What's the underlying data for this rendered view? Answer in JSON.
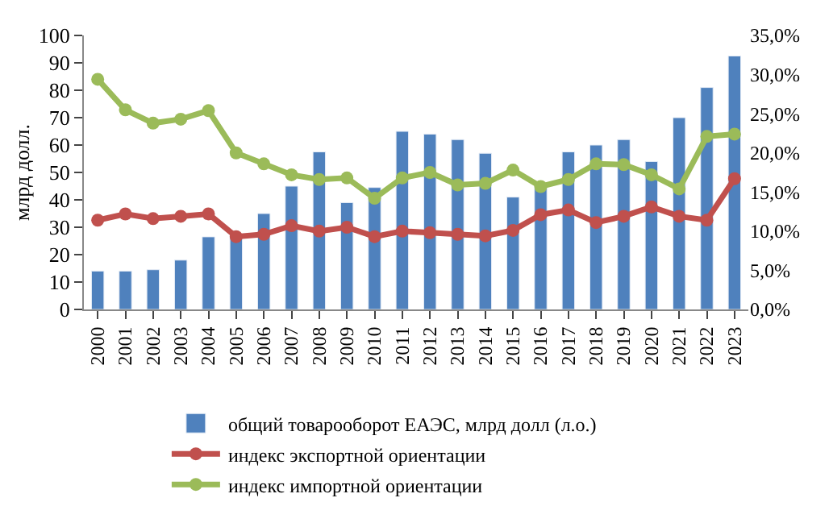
{
  "chart_data": {
    "type": "bar",
    "ylabel": "млрд долл.",
    "categories": [
      "2000",
      "2001",
      "2002",
      "2003",
      "2004",
      "2005",
      "2006",
      "2007",
      "2008",
      "2009",
      "2010",
      "2011",
      "2012",
      "2013",
      "2014",
      "2015",
      "2016",
      "2017",
      "2018",
      "2019",
      "2020",
      "2021",
      "2022",
      "2023"
    ],
    "series": [
      {
        "name": "общий товарооборот ЕАЭС, млрд долл (л.о.)",
        "color": "#4f81bd",
        "values": [
          14,
          14,
          14.5,
          18,
          26.5,
          27,
          35,
          45,
          57.5,
          39,
          44.5,
          65,
          64,
          62,
          57,
          41,
          45,
          57.5,
          60,
          62,
          54,
          70,
          81,
          92.5
        ]
      },
      {
        "name": "индекс экспортной ориентации",
        "type": "line",
        "axis": "y2",
        "color": "#c0504d",
        "marker": "circle",
        "values": [
          11.4,
          12.2,
          11.6,
          11.9,
          12.2,
          9.3,
          9.6,
          10.7,
          10.0,
          10.5,
          9.3,
          10.0,
          9.8,
          9.6,
          9.4,
          10.1,
          12.1,
          12.7,
          11.1,
          11.9,
          13.1,
          11.9,
          11.4,
          16.7
        ]
      },
      {
        "name": "индекс импортной ориентации",
        "type": "line",
        "axis": "y2",
        "color": "#9bbb59",
        "marker": "circle",
        "values": [
          29.4,
          25.5,
          23.8,
          24.3,
          25.4,
          20.0,
          18.6,
          17.2,
          16.6,
          16.8,
          14.2,
          16.8,
          17.5,
          15.9,
          16.1,
          17.8,
          15.7,
          16.6,
          18.6,
          18.5,
          17.2,
          15.4,
          22.1,
          22.4
        ]
      }
    ],
    "ylim": [
      0,
      100
    ],
    "yticks": [
      0,
      10,
      20,
      30,
      40,
      50,
      60,
      70,
      80,
      90,
      100
    ],
    "y2lim": [
      0,
      35
    ],
    "y2ticks": [
      {
        "value": 0,
        "label": "0,0%"
      },
      {
        "value": 5,
        "label": "5,0%"
      },
      {
        "value": 10,
        "label": "10,0%"
      },
      {
        "value": 15,
        "label": "15,0%"
      },
      {
        "value": 20,
        "label": "20,0%"
      },
      {
        "value": 25,
        "label": "25,0%"
      },
      {
        "value": 30,
        "label": "30,0%"
      },
      {
        "value": 35,
        "label": "35,0%"
      }
    ],
    "legend": "bottom"
  }
}
